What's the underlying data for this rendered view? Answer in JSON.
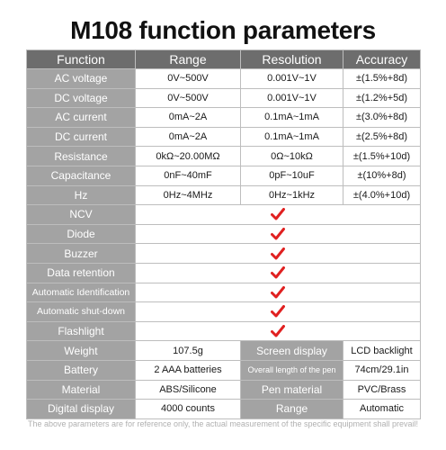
{
  "title": "M108 function parameters",
  "headers": [
    "Function",
    "Range",
    "Resolution",
    "Accuracy"
  ],
  "measure_rows": [
    {
      "function": "AC voltage",
      "range": "0V~500V",
      "resolution": "0.001V~1V",
      "accuracy": "±(1.5%+8d)"
    },
    {
      "function": "DC voltage",
      "range": "0V~500V",
      "resolution": "0.001V~1V",
      "accuracy": "±(1.2%+5d)"
    },
    {
      "function": "AC current",
      "range": "0mA~2A",
      "resolution": "0.1mA~1mA",
      "accuracy": "±(3.0%+8d)"
    },
    {
      "function": "DC current",
      "range": "0mA~2A",
      "resolution": "0.1mA~1mA",
      "accuracy": "±(2.5%+8d)"
    },
    {
      "function": "Resistance",
      "range": "0kΩ~20.00MΩ",
      "resolution": "0Ω~10kΩ",
      "accuracy": "±(1.5%+10d)"
    },
    {
      "function": "Capacitance",
      "range": "0nF~40mF",
      "resolution": "0pF~10uF",
      "accuracy": "±(10%+8d)"
    },
    {
      "function": "Hz",
      "range": "0Hz~4MHz",
      "resolution": "0Hz~1kHz",
      "accuracy": "±(4.0%+10d)"
    }
  ],
  "feature_rows": [
    "NCV",
    "Diode",
    "Buzzer",
    "Data retention",
    "Automatic Identification",
    "Automatic shut-down",
    "Flashlight"
  ],
  "check_icon": "red-checkmark-icon",
  "check_color": "#e02020",
  "spec_rows": [
    {
      "label1": "Weight",
      "value1": "107.5g",
      "label2": "Screen display",
      "value2": "LCD backlight"
    },
    {
      "label1": "Battery",
      "value1": "2 AAA batteries",
      "label2": "Overall length of the pen",
      "value2": "74cm/29.1in"
    },
    {
      "label1": "Material",
      "value1": "ABS/Silicone",
      "label2": "Pen material",
      "value2": "PVC/Brass"
    },
    {
      "label1": "Digital display",
      "value1": "4000 counts",
      "label2": "Range",
      "value2": "Automatic"
    }
  ],
  "footnote": "The above parameters are for reference only, the actual measurement of the specific equipment shall prevail!"
}
